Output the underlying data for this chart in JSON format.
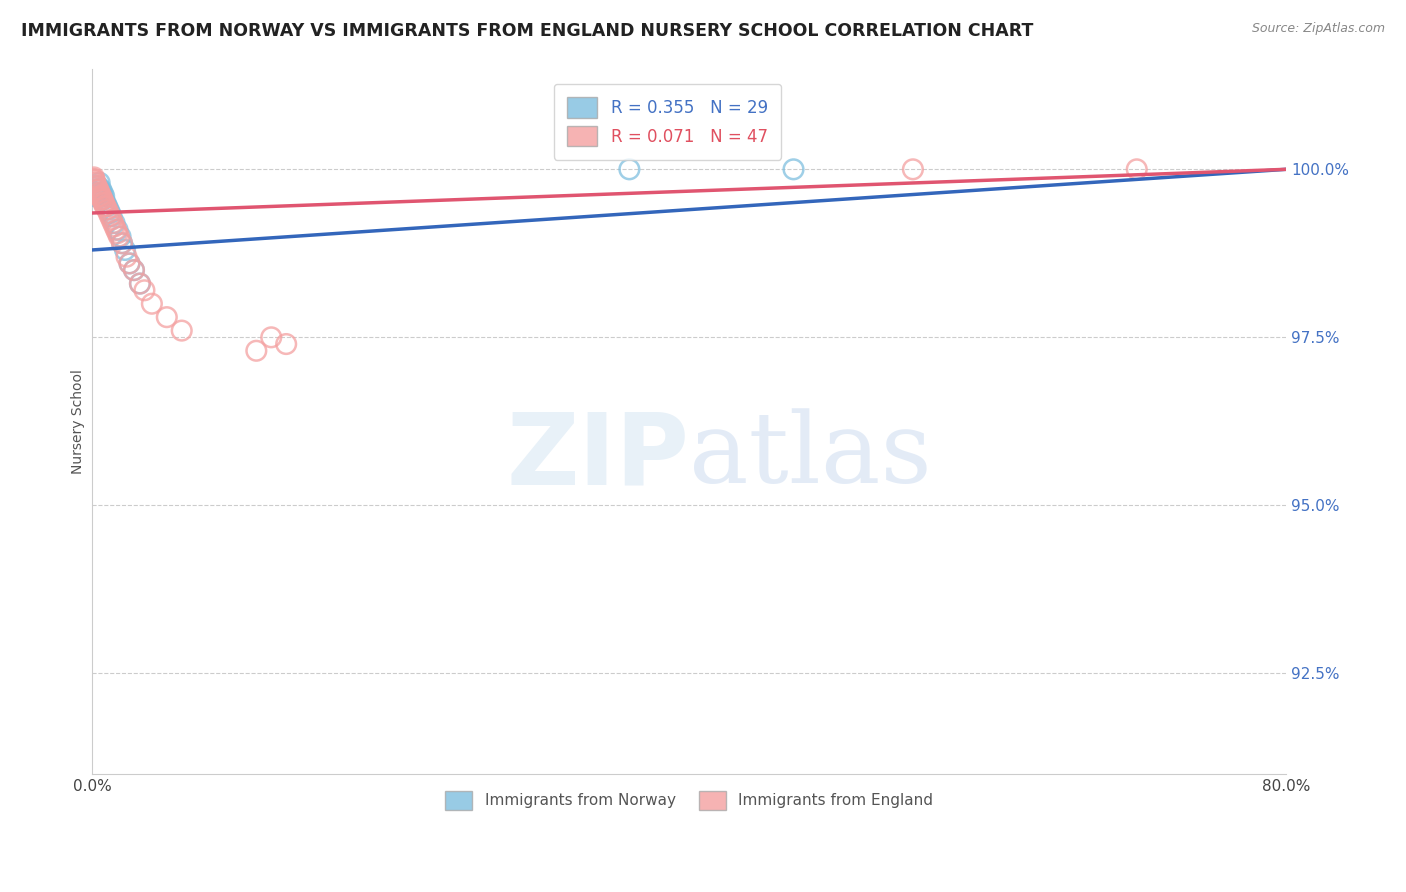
{
  "title": "IMMIGRANTS FROM NORWAY VS IMMIGRANTS FROM ENGLAND NURSERY SCHOOL CORRELATION CHART",
  "source": "Source: ZipAtlas.com",
  "ylabel": "Nursery School",
  "legend_norway": "Immigrants from Norway",
  "legend_england": "Immigrants from England",
  "norway_R": 0.355,
  "norway_N": 29,
  "england_R": 0.071,
  "england_N": 47,
  "xlim": [
    0.0,
    80.0
  ],
  "ylim": [
    91.0,
    101.5
  ],
  "yticks": [
    92.5,
    95.0,
    97.5,
    100.0
  ],
  "ytick_labels": [
    "92.5%",
    "95.0%",
    "97.5%",
    "100.0%"
  ],
  "xticks": [
    0.0,
    20.0,
    40.0,
    60.0,
    80.0
  ],
  "xtick_labels": [
    "0.0%",
    "",
    "",
    "",
    "80.0%"
  ],
  "norway_color": "#7fbfdf",
  "england_color": "#f4a0a0",
  "norway_line_color": "#3366bb",
  "england_line_color": "#e05570",
  "background_color": "#ffffff",
  "norway_x": [
    0.2,
    0.3,
    0.4,
    0.5,
    0.6,
    0.7,
    0.8,
    0.9,
    1.0,
    1.1,
    1.2,
    1.3,
    1.5,
    1.7,
    1.9,
    2.0,
    2.2,
    2.5,
    0.25,
    0.35,
    0.45,
    0.55,
    0.65,
    0.75,
    0.85,
    2.8,
    3.2,
    36.0,
    47.0
  ],
  "norway_y": [
    99.6,
    99.7,
    99.75,
    99.8,
    99.7,
    99.65,
    99.6,
    99.5,
    99.45,
    99.4,
    99.35,
    99.3,
    99.2,
    99.1,
    99.0,
    98.9,
    98.8,
    98.6,
    99.65,
    99.7,
    99.7,
    99.65,
    99.6,
    99.55,
    99.5,
    98.5,
    98.3,
    100.0,
    100.0
  ],
  "england_x": [
    0.1,
    0.2,
    0.3,
    0.4,
    0.5,
    0.6,
    0.7,
    0.8,
    0.9,
    1.0,
    1.1,
    1.2,
    1.4,
    1.6,
    1.8,
    2.0,
    2.3,
    2.8,
    3.2,
    4.0,
    0.25,
    0.35,
    0.45,
    0.55,
    0.65,
    0.75,
    0.85,
    0.15,
    1.3,
    1.5,
    1.7,
    5.0,
    6.0,
    11.0,
    12.0,
    13.0,
    55.0,
    0.12,
    0.18,
    0.22,
    0.32,
    0.42,
    2.5,
    3.5,
    0.52,
    0.62,
    70.0
  ],
  "england_y": [
    99.85,
    99.8,
    99.75,
    99.7,
    99.65,
    99.6,
    99.55,
    99.5,
    99.45,
    99.4,
    99.35,
    99.3,
    99.2,
    99.1,
    99.0,
    98.9,
    98.7,
    98.5,
    98.3,
    98.0,
    99.75,
    99.7,
    99.65,
    99.6,
    99.55,
    99.5,
    99.45,
    99.85,
    99.25,
    99.15,
    99.05,
    97.8,
    97.6,
    97.3,
    97.5,
    97.4,
    100.0,
    99.88,
    99.82,
    99.78,
    99.72,
    99.68,
    98.6,
    98.2,
    99.62,
    99.58,
    100.0
  ],
  "norway_line_x": [
    0.0,
    80.0
  ],
  "norway_line_y": [
    98.8,
    100.0
  ],
  "england_line_x": [
    0.0,
    80.0
  ],
  "england_line_y": [
    99.35,
    100.0
  ]
}
